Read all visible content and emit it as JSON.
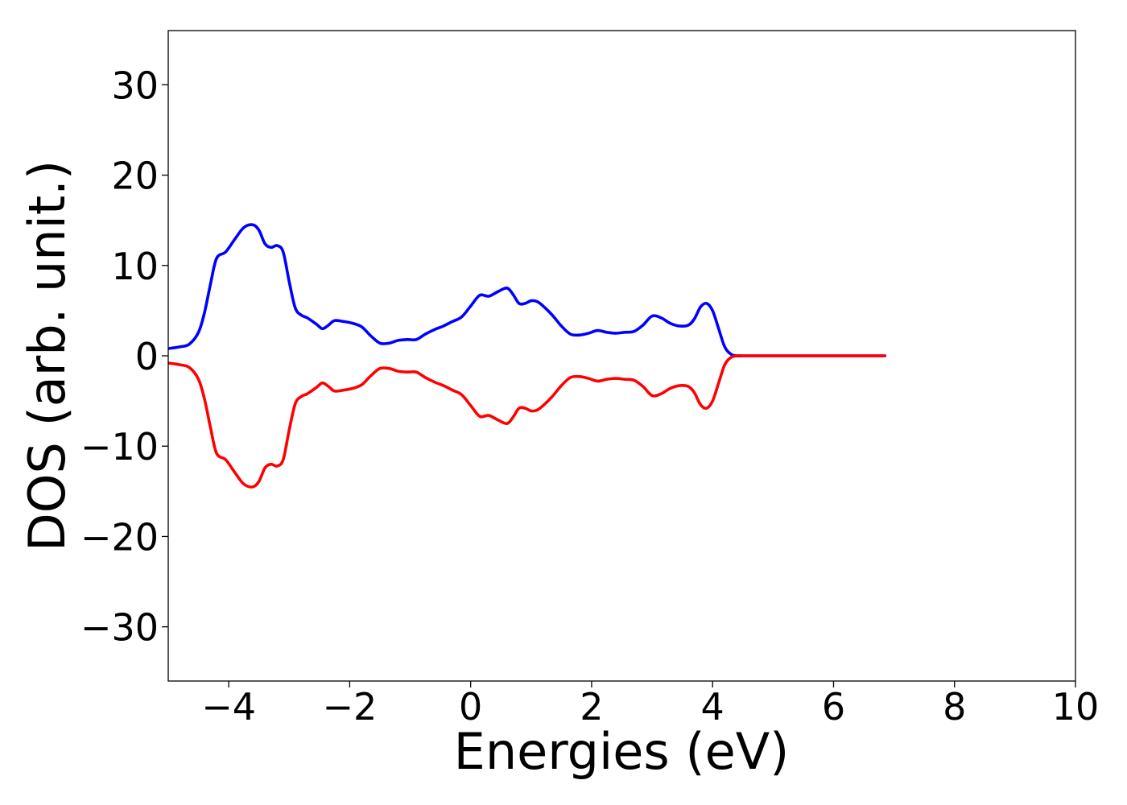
{
  "chart_data": {
    "type": "line",
    "title": "",
    "xlabel": "Energies (eV)",
    "ylabel": "DOS (arb. unit.)",
    "xlim": [
      -5.0,
      10.0
    ],
    "ylim": [
      -36.0,
      36.0
    ],
    "xticks": [
      -4,
      -2,
      0,
      2,
      4,
      6,
      8,
      10
    ],
    "yticks": [
      -30,
      -20,
      -10,
      0,
      10,
      20,
      30
    ],
    "xtick_labels": [
      "−4",
      "−2",
      "0",
      "2",
      "4",
      "6",
      "8",
      "10"
    ],
    "ytick_labels": [
      "−30",
      "−20",
      "−10",
      "0",
      "10",
      "20",
      "30"
    ],
    "grid": false,
    "legend": false,
    "series": [
      {
        "color": "#0000ff",
        "x": [
          -5.0,
          -4.8,
          -4.65,
          -4.5,
          -4.4,
          -4.3,
          -4.2,
          -4.05,
          -3.9,
          -3.75,
          -3.6,
          -3.5,
          -3.4,
          -3.3,
          -3.2,
          -3.1,
          -3.0,
          -2.9,
          -2.8,
          -2.7,
          -2.55,
          -2.45,
          -2.35,
          -2.25,
          -2.1,
          -1.95,
          -1.8,
          -1.65,
          -1.5,
          -1.35,
          -1.2,
          -1.05,
          -0.9,
          -0.75,
          -0.6,
          -0.45,
          -0.3,
          -0.15,
          0.0,
          0.15,
          0.3,
          0.45,
          0.6,
          0.7,
          0.8,
          0.9,
          1.0,
          1.1,
          1.2,
          1.35,
          1.5,
          1.65,
          1.8,
          1.95,
          2.1,
          2.25,
          2.4,
          2.55,
          2.7,
          2.85,
          3.0,
          3.15,
          3.3,
          3.45,
          3.6,
          3.7,
          3.8,
          3.9,
          4.0,
          4.1,
          4.2,
          4.3,
          4.4,
          4.5,
          4.6,
          4.7,
          4.8,
          4.9,
          5.0,
          5.1,
          5.3,
          5.6,
          6.0,
          6.4,
          6.85
        ],
        "y": [
          0.8,
          1.0,
          1.3,
          2.6,
          4.8,
          8.0,
          10.8,
          11.5,
          12.9,
          14.2,
          14.5,
          13.9,
          12.4,
          12.0,
          12.2,
          11.5,
          8.2,
          5.3,
          4.5,
          4.2,
          3.5,
          3.0,
          3.4,
          3.9,
          3.8,
          3.6,
          3.2,
          2.2,
          1.4,
          1.4,
          1.7,
          1.8,
          1.8,
          2.4,
          2.9,
          3.3,
          3.8,
          4.3,
          5.5,
          6.7,
          6.6,
          7.1,
          7.5,
          6.8,
          5.8,
          5.8,
          6.1,
          6.0,
          5.5,
          4.5,
          3.3,
          2.4,
          2.3,
          2.5,
          2.8,
          2.6,
          2.5,
          2.6,
          2.7,
          3.4,
          4.4,
          4.2,
          3.6,
          3.3,
          3.4,
          4.1,
          5.4,
          5.8,
          5.0,
          3.0,
          1.0,
          0.2,
          0.0,
          0.0,
          0.0,
          0.0,
          0.0,
          0.0,
          0.0,
          0.0,
          0.0,
          0.0,
          0.0,
          0.0,
          0.0
        ]
      },
      {
        "color": "#ff0000",
        "x": [
          -5.0,
          -4.8,
          -4.65,
          -4.5,
          -4.4,
          -4.3,
          -4.2,
          -4.05,
          -3.9,
          -3.75,
          -3.6,
          -3.5,
          -3.4,
          -3.3,
          -3.2,
          -3.1,
          -3.0,
          -2.9,
          -2.8,
          -2.7,
          -2.55,
          -2.45,
          -2.35,
          -2.25,
          -2.1,
          -1.95,
          -1.8,
          -1.65,
          -1.5,
          -1.35,
          -1.2,
          -1.05,
          -0.9,
          -0.75,
          -0.6,
          -0.45,
          -0.3,
          -0.15,
          0.0,
          0.15,
          0.3,
          0.45,
          0.6,
          0.7,
          0.8,
          0.9,
          1.0,
          1.1,
          1.2,
          1.35,
          1.5,
          1.65,
          1.8,
          1.95,
          2.1,
          2.25,
          2.4,
          2.55,
          2.7,
          2.85,
          3.0,
          3.15,
          3.3,
          3.45,
          3.6,
          3.7,
          3.8,
          3.9,
          4.0,
          4.1,
          4.2,
          4.3,
          4.4,
          4.5,
          4.6,
          4.7,
          4.8,
          4.9,
          5.0,
          5.1,
          5.3,
          5.6,
          6.0,
          6.4,
          6.85
        ],
        "y": [
          -0.8,
          -1.0,
          -1.3,
          -2.6,
          -4.8,
          -8.0,
          -10.8,
          -11.5,
          -12.9,
          -14.2,
          -14.5,
          -13.9,
          -12.4,
          -12.0,
          -12.2,
          -11.5,
          -8.2,
          -5.3,
          -4.5,
          -4.2,
          -3.5,
          -3.0,
          -3.4,
          -3.9,
          -3.8,
          -3.6,
          -3.2,
          -2.2,
          -1.4,
          -1.4,
          -1.7,
          -1.8,
          -1.8,
          -2.4,
          -2.9,
          -3.3,
          -3.8,
          -4.3,
          -5.5,
          -6.7,
          -6.6,
          -7.1,
          -7.5,
          -6.8,
          -5.8,
          -5.8,
          -6.1,
          -6.0,
          -5.5,
          -4.5,
          -3.3,
          -2.4,
          -2.3,
          -2.5,
          -2.8,
          -2.6,
          -2.5,
          -2.6,
          -2.7,
          -3.4,
          -4.4,
          -4.2,
          -3.6,
          -3.3,
          -3.4,
          -4.1,
          -5.4,
          -5.8,
          -5.0,
          -3.0,
          -1.0,
          -0.2,
          0.0,
          0.0,
          0.0,
          0.0,
          0.0,
          0.0,
          0.0,
          0.0,
          0.0,
          0.0,
          0.0,
          0.0,
          0.0
        ]
      }
    ]
  }
}
